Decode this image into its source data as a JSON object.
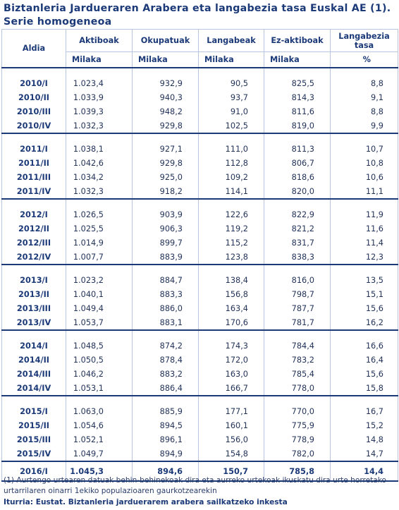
{
  "title": "Biztanleria Jardueraren Arabera eta langabezia tasa Euskal AE (1). Serie homogeneoa",
  "headers": {
    "period": "Aldia",
    "columns": [
      "Aktiboak",
      "Okupatuak",
      "Langabeak",
      "Ez-aktiboak",
      "Langabezia tasa"
    ],
    "units": [
      "Milaka",
      "Milaka",
      "Milaka",
      "Milaka",
      "%"
    ]
  },
  "groups": [
    {
      "rows": [
        [
          "2010/I",
          "1.023,4",
          "932,9",
          "90,5",
          "825,5",
          "8,8"
        ],
        [
          "2010/II",
          "1.033,9",
          "940,3",
          "93,7",
          "814,3",
          "9,1"
        ],
        [
          "2010/III",
          "1.039,3",
          "948,2",
          "91,0",
          "811,6",
          "8,8"
        ],
        [
          "2010/IV",
          "1.032,3",
          "929,8",
          "102,5",
          "819,0",
          "9,9"
        ]
      ]
    },
    {
      "rows": [
        [
          "2011/I",
          "1.038,1",
          "927,1",
          "111,0",
          "811,3",
          "10,7"
        ],
        [
          "2011/II",
          "1.042,6",
          "929,8",
          "112,8",
          "806,7",
          "10,8"
        ],
        [
          "2011/III",
          "1.034,2",
          "925,0",
          "109,2",
          "818,6",
          "10,6"
        ],
        [
          "2011/IV",
          "1.032,3",
          "918,2",
          "114,1",
          "820,0",
          "11,1"
        ]
      ]
    },
    {
      "rows": [
        [
          "2012/I",
          "1.026,5",
          "903,9",
          "122,6",
          "822,9",
          "11,9"
        ],
        [
          "2012/II",
          "1.025,5",
          "906,3",
          "119,2",
          "821,2",
          "11,6"
        ],
        [
          "2012/III",
          "1.014,9",
          "899,7",
          "115,2",
          "831,7",
          "11,4"
        ],
        [
          "2012/IV",
          "1.007,7",
          "883,9",
          "123,8",
          "838,3",
          "12,3"
        ]
      ]
    },
    {
      "rows": [
        [
          "2013/I",
          "1.023,2",
          "884,7",
          "138,4",
          "816,0",
          "13,5"
        ],
        [
          "2013/II",
          "1.040,1",
          "883,3",
          "156,8",
          "798,7",
          "15,1"
        ],
        [
          "2013/III",
          "1.049,4",
          "886,0",
          "163,4",
          "787,7",
          "15,6"
        ],
        [
          "2013/IV",
          "1.053,7",
          "883,1",
          "170,6",
          "781,7",
          "16,2"
        ]
      ]
    },
    {
      "rows": [
        [
          "2014/I",
          "1.048,5",
          "874,2",
          "174,3",
          "784,4",
          "16,6"
        ],
        [
          "2014/II",
          "1.050,5",
          "878,4",
          "172,0",
          "783,2",
          "16,4"
        ],
        [
          "2014/III",
          "1.046,2",
          "883,2",
          "163,0",
          "785,4",
          "15,6"
        ],
        [
          "2014/IV",
          "1.053,1",
          "886,4",
          "166,7",
          "778,0",
          "15,8"
        ]
      ]
    },
    {
      "rows": [
        [
          "2015/I",
          "1.063,0",
          "885,9",
          "177,1",
          "770,0",
          "16,7"
        ],
        [
          "2015/II",
          "1.054,6",
          "894,5",
          "160,1",
          "775,9",
          "15,2"
        ],
        [
          "2015/III",
          "1.052,1",
          "896,1",
          "156,0",
          "778,9",
          "14,8"
        ],
        [
          "2015/IV",
          "1.049,7",
          "894,9",
          "154,8",
          "782,0",
          "14,7"
        ]
      ]
    }
  ],
  "final_row": [
    "2016/I",
    "1.045,3",
    "894,6",
    "150,7",
    "785,8",
    "14,4"
  ],
  "note": "(1) Aurtengo urtearen datuak behin-behinekoak dira eta aurreko urtekoak ikuskatu dira urte horretako urtarrilaren oinarri 1ekiko populazioaren gaurkotzearekin",
  "source": "Iturria: Eustat. Biztanleria jarduerarem arabera sailkatzeko inkesta"
}
